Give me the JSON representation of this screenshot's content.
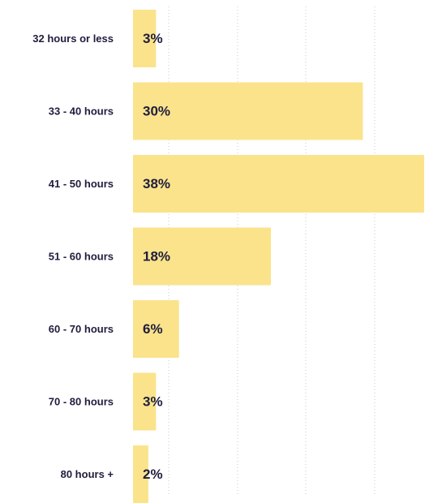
{
  "chart_data": {
    "type": "bar",
    "orientation": "horizontal",
    "categories": [
      "32 hours or less",
      "33 - 40 hours",
      "41 - 50 hours",
      "51 - 60 hours",
      "60 - 70 hours",
      "70 - 80 hours",
      "80 hours +"
    ],
    "values": [
      3,
      30,
      38,
      18,
      6,
      3,
      2
    ],
    "value_labels": [
      "3%",
      "30%",
      "38%",
      "18%",
      "6%",
      "3%",
      "2%"
    ],
    "xlim": [
      0,
      38
    ],
    "grid": true,
    "bar_color": "#fbe38b",
    "text_color": "#1f1d3d",
    "grid_color": "#c9c9c9"
  }
}
